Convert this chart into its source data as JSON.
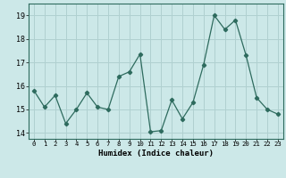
{
  "x": [
    0,
    1,
    2,
    3,
    4,
    5,
    6,
    7,
    8,
    9,
    10,
    11,
    12,
    13,
    14,
    15,
    16,
    17,
    18,
    19,
    20,
    21,
    22,
    23
  ],
  "y": [
    15.8,
    15.1,
    15.6,
    14.4,
    15.0,
    15.7,
    15.1,
    15.0,
    16.4,
    16.6,
    17.35,
    14.05,
    14.1,
    15.4,
    14.6,
    15.3,
    16.9,
    19.0,
    18.4,
    18.8,
    17.3,
    15.5,
    15.0,
    14.8
  ],
  "line_color": "#2e6b5e",
  "bg_color": "#cce8e8",
  "grid_color": "#b0d0d0",
  "xlabel": "Humidex (Indice chaleur)",
  "ylim": [
    13.75,
    19.5
  ],
  "xlim": [
    -0.5,
    23.5
  ],
  "yticks": [
    14,
    15,
    16,
    17,
    18,
    19
  ],
  "xticks": [
    0,
    1,
    2,
    3,
    4,
    5,
    6,
    7,
    8,
    9,
    10,
    11,
    12,
    13,
    14,
    15,
    16,
    17,
    18,
    19,
    20,
    21,
    22,
    23
  ]
}
